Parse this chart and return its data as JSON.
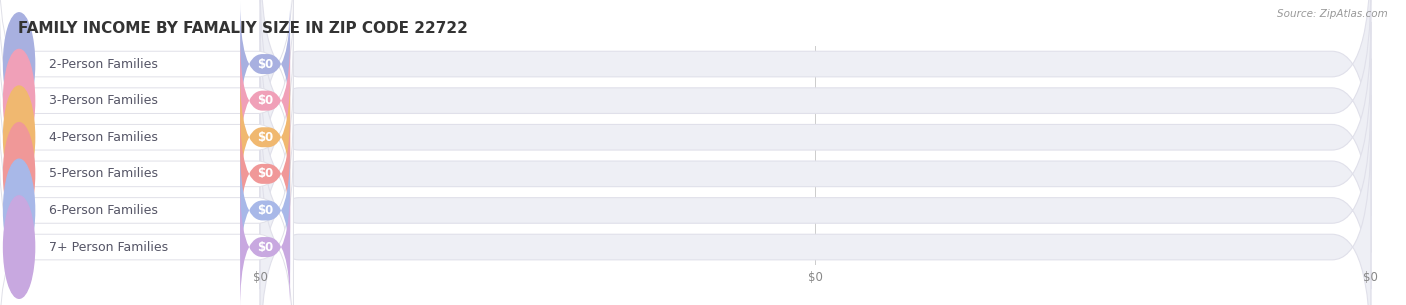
{
  "title": "FAMILY INCOME BY FAMALIY SIZE IN ZIP CODE 22722",
  "source_text": "Source: ZipAtlas.com",
  "categories": [
    "2-Person Families",
    "3-Person Families",
    "4-Person Families",
    "5-Person Families",
    "6-Person Families",
    "7+ Person Families"
  ],
  "values": [
    0,
    0,
    0,
    0,
    0,
    0
  ],
  "bar_colors": [
    "#a8b0e0",
    "#f0a0b8",
    "#f0b870",
    "#f09898",
    "#a8b8e8",
    "#c8a8e0"
  ],
  "bg_color": "#ffffff",
  "bar_bg_color": "#eeeff5",
  "bar_bg_edge": "#e0e0ea",
  "title_fontsize": 11,
  "label_fontsize": 9,
  "value_label": "$0",
  "x_tick_labels": [
    "$0",
    "$0",
    "$0"
  ]
}
